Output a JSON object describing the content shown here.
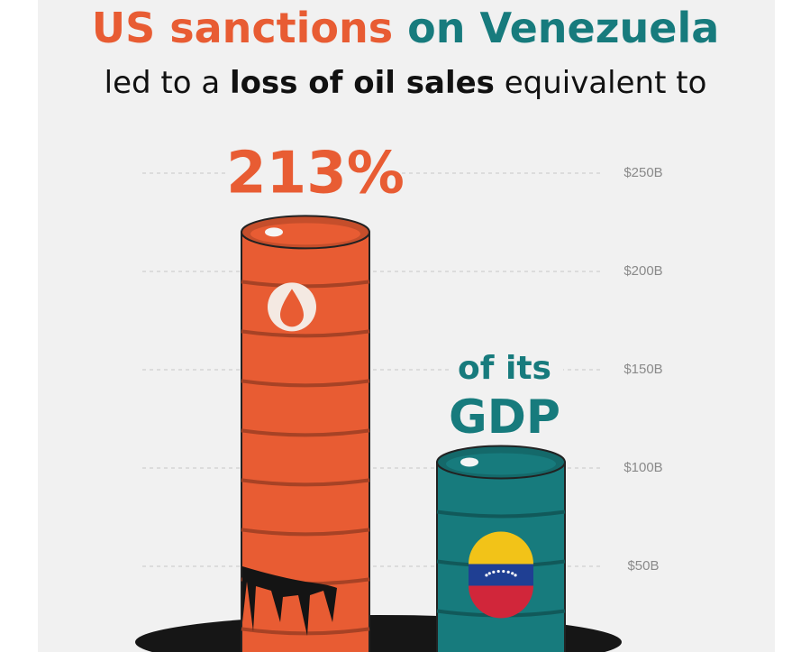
{
  "chart_data": {
    "type": "bar",
    "title": [
      "US sanctions",
      "on Venezuela"
    ],
    "subtitle": [
      "led to a",
      "loss of oil sales",
      "equivalent to"
    ],
    "annotations": [
      "213%",
      "of its",
      "GDP"
    ],
    "categories": [
      null,
      null
    ],
    "values": [
      220,
      103
    ],
    "colors": [
      "#e85c33",
      "#177b7d"
    ],
    "ylim": [
      0,
      250
    ],
    "yticks": [
      {
        "value": 50,
        "label": "$50B"
      },
      {
        "value": 100,
        "label": "$100B"
      },
      {
        "value": 150,
        "label": "$150B"
      },
      {
        "value": 200,
        "label": "$200B"
      },
      {
        "value": 250,
        "label": "$250B"
      }
    ],
    "grid": true
  }
}
